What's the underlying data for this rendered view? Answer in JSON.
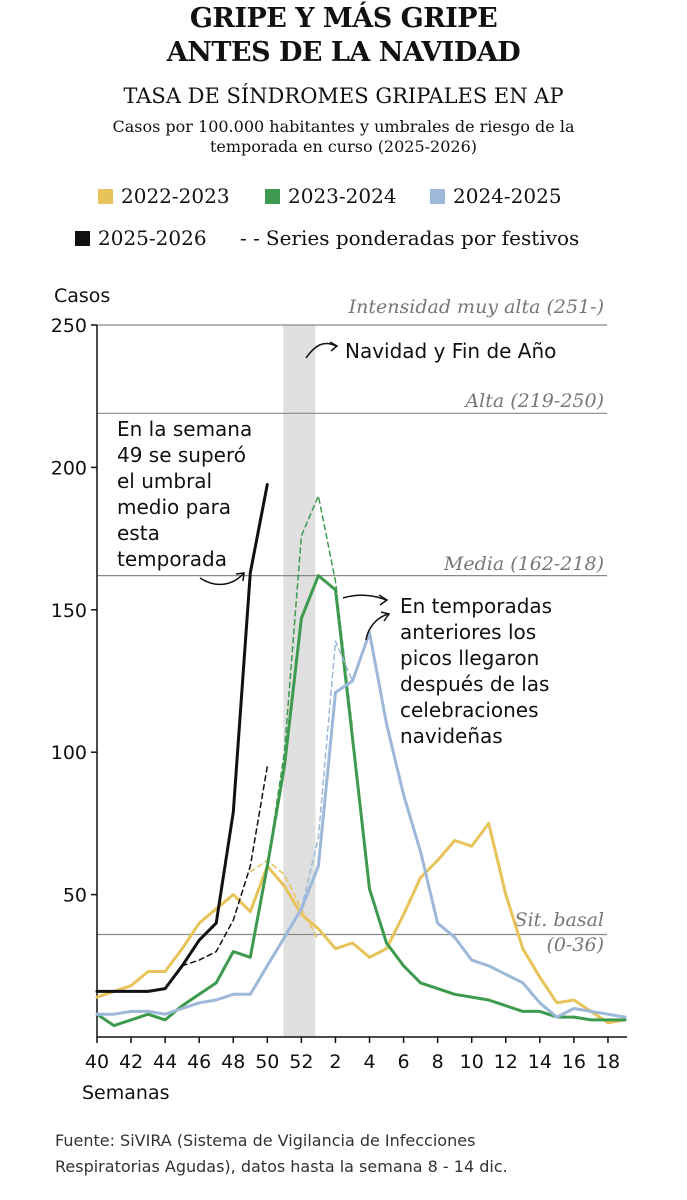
{
  "header": {
    "title_line1": "GRIPE Y MÁS GRIPE",
    "title_line2": "ANTES DE LA NAVIDAD",
    "subtitle": "TASA DE SÍNDROMES GRIPALES EN AP",
    "description_line1": "Casos por 100.000 habitantes y umbrales de riesgo de la",
    "description_line2": "temporada en curso (2025-2026)"
  },
  "legend": {
    "s2022": "2022-2023",
    "s2023": "2023-2024",
    "s2024": "2024-2025",
    "s2025": "2025-2026",
    "dashed": "Series ponderadas por festivos",
    "dash_glyph": "- -"
  },
  "colors": {
    "s2022": "#e8c35a",
    "s2023": "#3e9a4e",
    "s2024": "#9db8d9",
    "s2025": "#111111",
    "holiday": "#e0e0e0",
    "threshold": "#8a8a8a"
  },
  "chart_data": {
    "type": "line",
    "title": "TASA DE SÍNDROMES GRIPALES EN AP",
    "ylabel": "Casos",
    "xlabel": "Semanas",
    "ylim": [
      0,
      250
    ],
    "x_index_range": [
      0,
      31
    ],
    "y_ticks": [
      50,
      100,
      150,
      200,
      250
    ],
    "y_tick_labels": [
      "50",
      "100",
      "150",
      "200",
      "250"
    ],
    "x_tick_labels": [
      "40",
      "42",
      "44",
      "46",
      "48",
      "50",
      "52",
      "2",
      "4",
      "6",
      "8",
      "10",
      "12",
      "14",
      "16",
      "18"
    ],
    "x_tick_index": [
      0,
      2,
      4,
      6,
      8,
      10,
      12,
      14,
      16,
      18,
      20,
      22,
      24,
      26,
      28,
      30
    ],
    "holiday_band": {
      "label": "Navidad y Fin de Año",
      "from_index": 11,
      "to_index": 13
    },
    "thresholds": [
      {
        "label": "Intensidad muy alta (251-)",
        "value": 251
      },
      {
        "label": "Alta (219-250)",
        "value": 219
      },
      {
        "label": "Media (162-218)",
        "value": 162
      },
      {
        "label_line1": "Sit. basal",
        "label_line2": "(0-36)",
        "value": 36
      }
    ],
    "series": [
      {
        "name": "2022-2023",
        "color": "#e8c35a",
        "values": [
          14,
          16,
          18,
          23,
          23,
          31,
          40,
          45,
          50,
          44,
          60,
          53,
          43,
          38,
          31,
          33,
          28,
          31,
          43,
          56,
          62,
          69,
          67,
          75,
          50,
          31,
          21,
          12,
          13,
          9,
          5,
          6
        ]
      },
      {
        "name": "2022-2023 ponderada",
        "color": "#e8c35a",
        "dashed": true,
        "from_index": 9,
        "values": [
          58,
          62,
          57,
          45,
          34
        ]
      },
      {
        "name": "2023-2024",
        "color": "#3e9a4e",
        "values": [
          8,
          4,
          6,
          8,
          6,
          11,
          15,
          19,
          30,
          28,
          60,
          95,
          147,
          162,
          157,
          105,
          52,
          33,
          25,
          19,
          17,
          15,
          14,
          13,
          11,
          9,
          9,
          7,
          7,
          6,
          6,
          6
        ]
      },
      {
        "name": "2023-2024 ponderada",
        "color": "#3e9a4e",
        "dashed": true,
        "from_index": 10,
        "values": [
          60,
          100,
          176,
          190,
          160,
          108
        ]
      },
      {
        "name": "2024-2025",
        "color": "#9db8d9",
        "values": [
          8,
          8,
          9,
          9,
          8,
          10,
          12,
          13,
          15,
          15,
          25,
          35,
          45,
          60,
          121,
          125,
          142,
          110,
          85,
          65,
          40,
          35,
          27,
          25,
          22,
          19,
          12,
          7,
          10,
          9,
          8,
          7
        ]
      },
      {
        "name": "2024-2025 ponderada",
        "color": "#9db8d9",
        "dashed": true,
        "from_index": 12,
        "values": [
          45,
          70,
          139,
          125
        ]
      },
      {
        "name": "2025-2026",
        "color": "#111111",
        "values": [
          16,
          16,
          16,
          16,
          17,
          25,
          34,
          40,
          79,
          163,
          194
        ]
      },
      {
        "name": "2025-2026 ponderada",
        "color": "#111111",
        "dashed": true,
        "from_index": 5,
        "values": [
          25,
          27,
          30,
          41,
          60,
          95
        ]
      }
    ],
    "annotations": {
      "holiday": "Navidad y Fin de Año",
      "week49": [
        "En la semana",
        "49 se superó",
        "el umbral",
        "medio para",
        "esta",
        "temporada"
      ],
      "previous": [
        "En temporadas",
        "anteriores los",
        "picos llegaron",
        "después de las",
        "celebraciones",
        "navideñas"
      ]
    }
  },
  "footer": {
    "source_line1": "Fuente: SiVIRA (Sistema de Vigilancia de Infecciones",
    "source_line2": "Respiratorias Agudas), datos hasta la semana 8 - 14 dic."
  }
}
